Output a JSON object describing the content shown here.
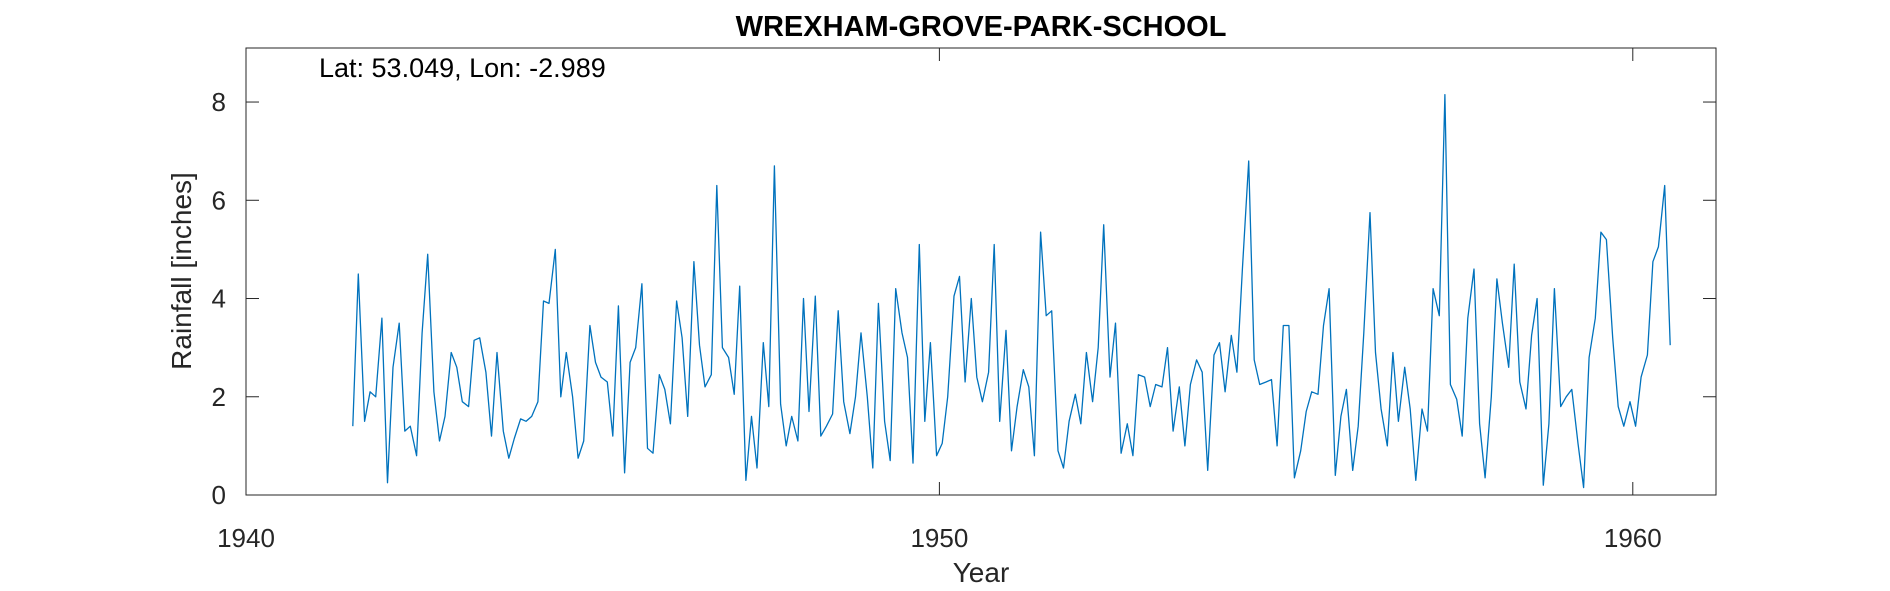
{
  "chart_data": {
    "type": "line",
    "title": "WREXHAM-GROVE-PARK-SCHOOL",
    "annotation": "Lat: 53.049, Lon: -2.989",
    "xlabel": "Year",
    "ylabel": "Rainfall [inches]",
    "xlim": [
      1940,
      1961.2
    ],
    "ylim": [
      0,
      9.1
    ],
    "xticks": [
      1940,
      1950,
      1960
    ],
    "yticks": [
      0,
      2,
      4,
      6,
      8
    ],
    "grid": false,
    "line_color": "#0072BD",
    "series": [
      {
        "x": [
          1941.54,
          1941.62,
          1941.71,
          1941.79,
          1941.87,
          1941.96,
          1942.04,
          1942.12,
          1942.21,
          1942.29,
          1942.37,
          1942.46,
          1942.54,
          1942.62,
          1942.71,
          1942.79,
          1942.87,
          1942.96,
          1943.04,
          1943.12,
          1943.21,
          1943.29,
          1943.37,
          1943.46,
          1943.54,
          1943.62,
          1943.71,
          1943.79,
          1943.87,
          1943.96,
          1944.04,
          1944.12,
          1944.21,
          1944.29,
          1944.37,
          1944.46,
          1944.54,
          1944.62,
          1944.71,
          1944.79,
          1944.87,
          1944.96,
          1945.04,
          1945.12,
          1945.21,
          1945.29,
          1945.37,
          1945.46,
          1945.54,
          1945.62,
          1945.71,
          1945.79,
          1945.87,
          1945.96,
          1946.04,
          1946.12,
          1946.21,
          1946.29,
          1946.37,
          1946.46,
          1946.54,
          1946.62,
          1946.71,
          1946.79,
          1946.87,
          1946.96,
          1947.04,
          1947.12,
          1947.21,
          1947.29,
          1947.37,
          1947.46,
          1947.54,
          1947.62,
          1947.71,
          1947.79,
          1947.87,
          1947.96,
          1948.04,
          1948.12,
          1948.21,
          1948.29,
          1948.37,
          1948.46,
          1948.54,
          1948.62,
          1948.71,
          1948.79,
          1948.87,
          1948.96,
          1949.04,
          1949.12,
          1949.21,
          1949.29,
          1949.37,
          1949.46,
          1949.54,
          1949.62,
          1949.71,
          1949.79,
          1949.87,
          1949.96,
          1950.04,
          1950.12,
          1950.21,
          1950.29,
          1950.37,
          1950.46,
          1950.54,
          1950.62,
          1950.71,
          1950.79,
          1950.87,
          1950.96,
          1951.04,
          1951.12,
          1951.21,
          1951.29,
          1951.37,
          1951.46,
          1951.54,
          1951.62,
          1951.71,
          1951.79,
          1951.87,
          1951.96,
          1952.04,
          1952.12,
          1952.21,
          1952.29,
          1952.37,
          1952.46,
          1952.54,
          1952.62,
          1952.71,
          1952.79,
          1952.87,
          1952.96,
          1953.04,
          1953.12,
          1953.21,
          1953.29,
          1953.37,
          1953.46,
          1953.54,
          1953.62,
          1953.71,
          1953.79,
          1953.87,
          1953.96,
          1954.04,
          1954.12,
          1954.21,
          1954.29,
          1954.37,
          1954.46,
          1954.54,
          1954.62,
          1954.71,
          1954.79,
          1954.87,
          1954.96,
          1955.04,
          1955.12,
          1955.21,
          1955.29,
          1955.37,
          1955.46,
          1955.54,
          1955.62,
          1955.71,
          1955.79,
          1955.87,
          1955.96,
          1956.04,
          1956.12,
          1956.21,
          1956.29,
          1956.37,
          1956.46,
          1956.54,
          1956.62,
          1956.71,
          1956.79,
          1956.87,
          1956.96,
          1957.04,
          1957.12,
          1957.21,
          1957.29,
          1957.37,
          1957.46,
          1957.54,
          1957.62,
          1957.71,
          1957.79,
          1957.87,
          1957.96,
          1958.04,
          1958.12,
          1958.21,
          1958.29,
          1958.37,
          1958.46,
          1958.54,
          1958.62,
          1958.71,
          1958.79,
          1958.87,
          1958.96,
          1959.04,
          1959.12,
          1959.21,
          1959.29,
          1959.37,
          1959.46,
          1959.54,
          1959.62,
          1959.71,
          1959.79,
          1959.87,
          1959.96,
          1960.04,
          1960.12,
          1960.21,
          1960.29,
          1960.37,
          1960.46,
          1960.54
        ],
        "values": [
          1.4,
          4.5,
          1.5,
          2.1,
          2.0,
          3.6,
          0.25,
          2.6,
          3.5,
          1.3,
          1.4,
          0.8,
          3.3,
          4.9,
          2.1,
          1.1,
          1.6,
          2.9,
          2.6,
          1.9,
          1.8,
          3.15,
          3.2,
          2.5,
          1.2,
          2.9,
          1.3,
          0.75,
          1.15,
          1.55,
          1.5,
          1.6,
          1.9,
          3.95,
          3.9,
          5.0,
          2.0,
          2.9,
          2.0,
          0.75,
          1.1,
          3.45,
          2.7,
          2.4,
          2.3,
          1.2,
          3.85,
          0.45,
          2.7,
          3.0,
          4.3,
          0.95,
          0.85,
          2.45,
          2.15,
          1.45,
          3.95,
          3.2,
          1.6,
          4.75,
          3.05,
          2.2,
          2.45,
          6.3,
          3.0,
          2.8,
          2.05,
          4.25,
          0.3,
          1.6,
          0.55,
          3.1,
          1.8,
          6.7,
          1.85,
          1.0,
          1.6,
          1.1,
          4.0,
          1.7,
          4.05,
          1.2,
          1.4,
          1.65,
          3.75,
          1.9,
          1.25,
          2.0,
          3.3,
          2.0,
          0.55,
          3.9,
          1.5,
          0.7,
          4.2,
          3.3,
          2.8,
          0.65,
          5.1,
          1.5,
          3.1,
          0.8,
          1.05,
          2.0,
          4.05,
          4.45,
          2.3,
          4.0,
          2.4,
          1.9,
          2.5,
          5.1,
          1.5,
          3.35,
          0.9,
          1.8,
          2.55,
          2.2,
          0.8,
          5.35,
          3.65,
          3.75,
          0.9,
          0.55,
          1.5,
          2.05,
          1.45,
          2.9,
          1.9,
          3.0,
          5.5,
          2.4,
          3.5,
          0.85,
          1.45,
          0.8,
          2.45,
          2.4,
          1.8,
          2.25,
          2.2,
          3.0,
          1.3,
          2.2,
          1.0,
          2.25,
          2.75,
          2.5,
          0.5,
          2.85,
          3.1,
          2.1,
          3.25,
          2.5,
          4.6,
          6.8,
          2.75,
          2.25,
          2.3,
          2.35,
          1.0,
          3.45,
          3.45,
          0.35,
          0.9,
          1.7,
          2.1,
          2.05,
          3.45,
          4.2,
          0.4,
          1.6,
          2.15,
          0.5,
          1.4,
          3.3,
          5.75,
          2.9,
          1.75,
          1.0,
          2.9,
          1.5,
          2.6,
          1.75,
          0.3,
          1.75,
          1.3,
          4.2,
          3.65,
          8.15,
          2.25,
          1.95,
          1.2,
          3.6,
          4.6,
          1.45,
          0.35,
          2.0,
          4.4,
          3.5,
          2.6,
          4.7,
          2.3,
          1.75,
          3.25,
          4.0,
          0.2,
          1.45,
          4.2,
          1.8,
          2.0,
          2.15,
          1.05,
          0.15,
          2.8,
          3.6,
          5.35,
          5.2,
          3.2,
          1.8,
          1.4,
          1.9,
          1.4,
          2.4,
          2.85,
          4.75,
          5.05,
          6.3,
          3.05
        ]
      }
    ]
  }
}
